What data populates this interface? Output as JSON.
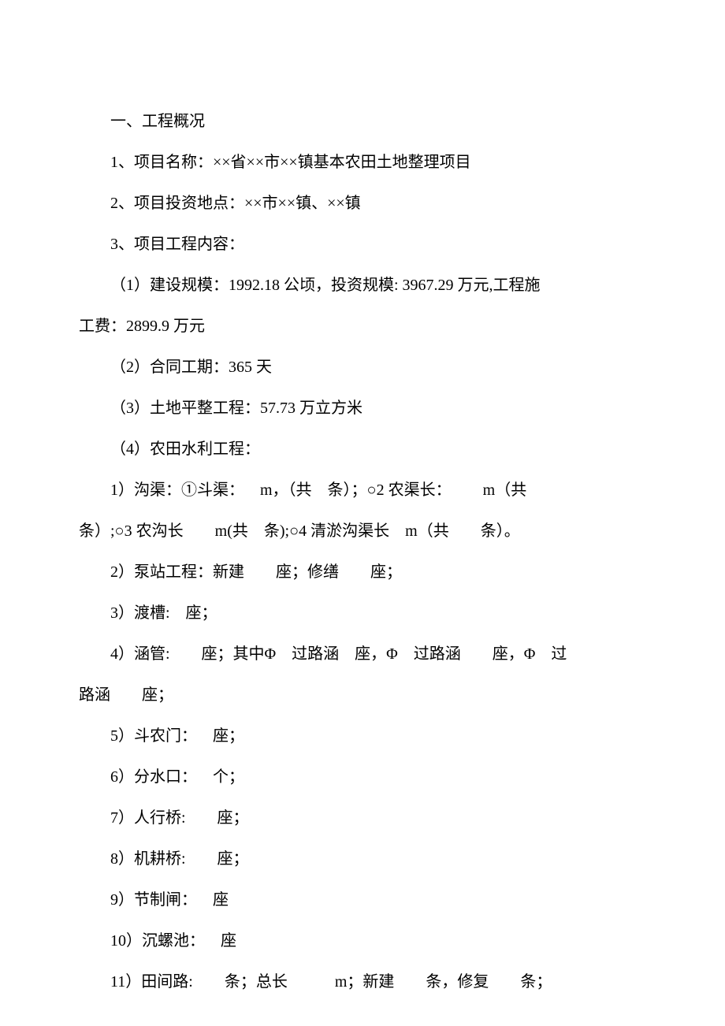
{
  "text_color": "#000000",
  "background_color": "#ffffff",
  "font_size": 20,
  "line_height": 2.6,
  "lines": {
    "l1": "一、工程概况",
    "l2": "1、项目名称：××省××市××镇基本农田土地整理项目",
    "l3": "2、项目投资地点：××市××镇、××镇",
    "l4": "3、项目工程内容：",
    "l5a": "（1）建设规模：1992.18 公顷，投资规模: 3967.29 万元,工程施",
    "l5b": "工费：2899.9 万元",
    "l6": "（2）合同工期：365 天",
    "l7": "（3）土地平整工程：57.73 万立方米",
    "l8": "（4）农田水利工程：",
    "l9a": "1）沟渠：①斗渠： m，（共 条）；○2 农渠长：  m（共",
    "l9b": "条）;○3 农沟长  m(共 条);○4 清淤沟渠长 m（共  条）。",
    "l10": "2）泵站工程：新建  座；修缮  座；",
    "l11": "3）渡槽: 座；",
    "l12a": "4）涵管:  座；其中Φ 过路涵 座，Φ 过路涵  座，Φ 过",
    "l12b": "路涵  座；",
    "l13": "5）斗农门： 座；",
    "l14": "6）分水口： 个；",
    "l15": "7）人行桥:  座；",
    "l16": "8）机耕桥:  座；",
    "l17": "9）节制闸： 座",
    "l18": "10）沉螺池： 座",
    "l19": "11）田间路:  条；总长   m；新建  条，修复  条；"
  }
}
